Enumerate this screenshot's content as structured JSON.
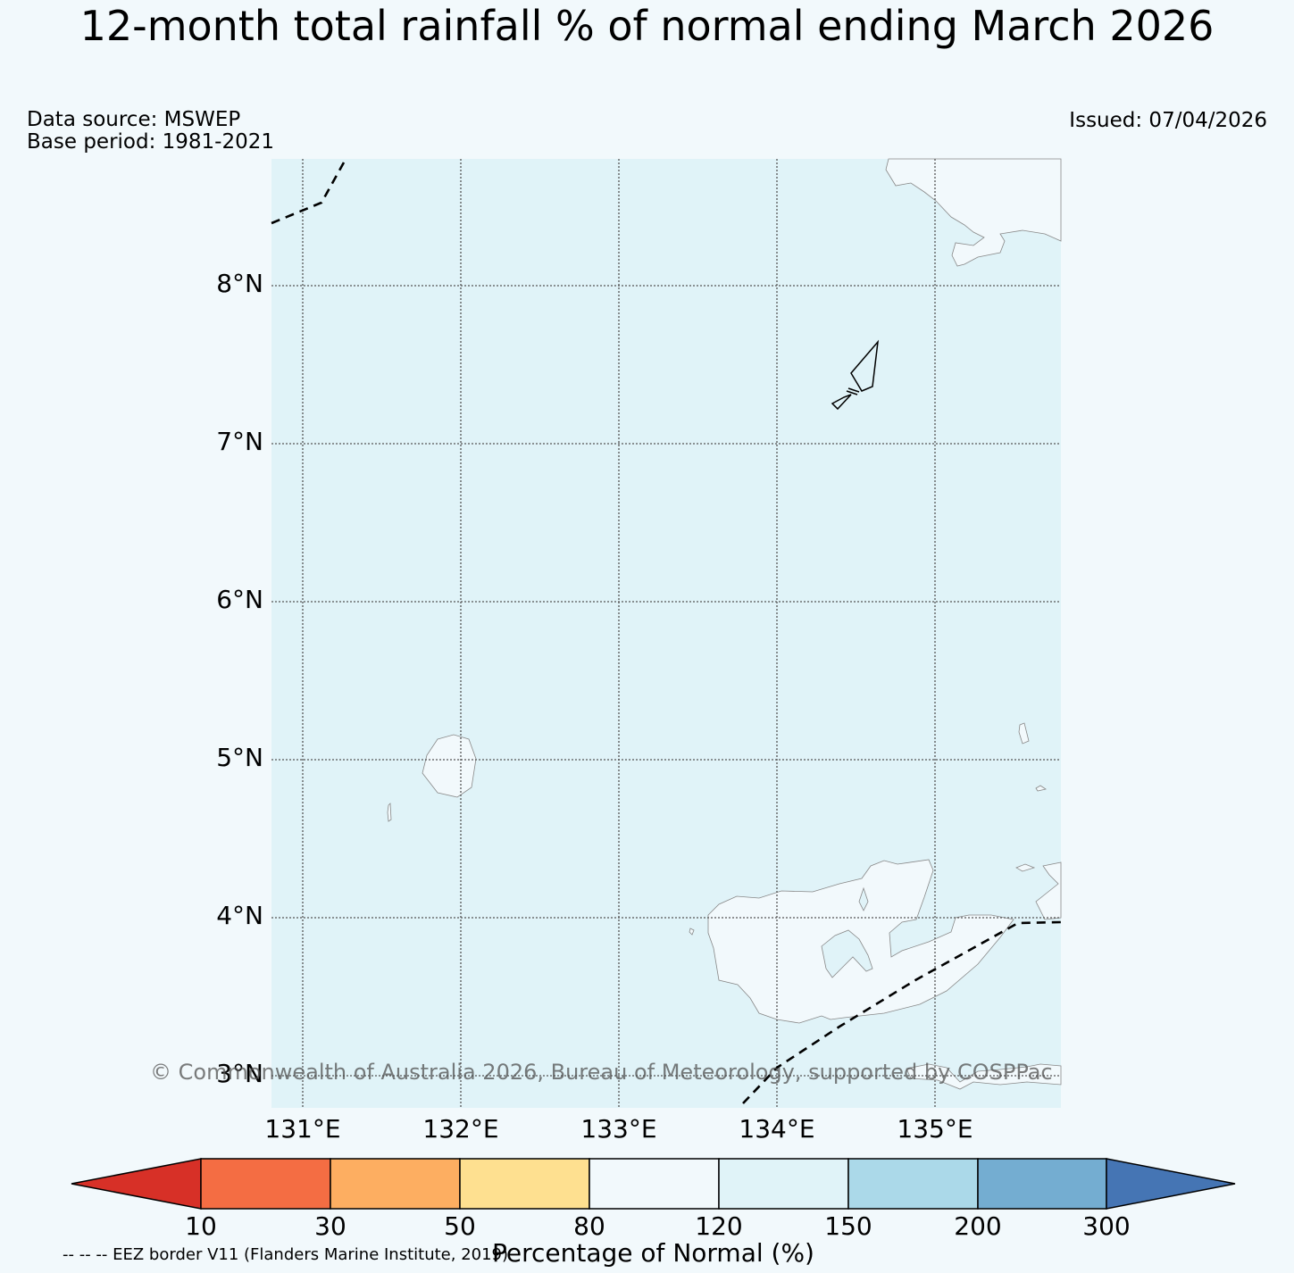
{
  "title": "12-month total rainfall % of normal ending March 2026",
  "data_source": "Data source: MSWEP",
  "base_period": "Base period: 1981-2021",
  "issued": "Issued: 07/04/2026",
  "copyright": "© Commonwealth of Australia 2026, Bureau of Meteorology, supported by COSPPac",
  "eez_note": "-- -- -- EEZ border V11 (Flanders Marine Institute, 2019)",
  "map": {
    "lat_labels": [
      "8°N",
      "7°N",
      "6°N",
      "5°N",
      "4°N",
      "3°N"
    ],
    "lon_labels": [
      "131°E",
      "132°E",
      "133°E",
      "134°E",
      "135°E"
    ],
    "ocean_category": "120-150",
    "land_category": "80-120"
  },
  "colorbar": {
    "label": "Percentage of Normal (%)",
    "ticks": [
      "10",
      "30",
      "50",
      "80",
      "120",
      "150",
      "200",
      "300"
    ],
    "colors": [
      "#d73027",
      "#f46d43",
      "#fdae61",
      "#fee090",
      "#f2f9fc",
      "#e0f3f8",
      "#abd9e9",
      "#74add1",
      "#4575b4"
    ]
  }
}
